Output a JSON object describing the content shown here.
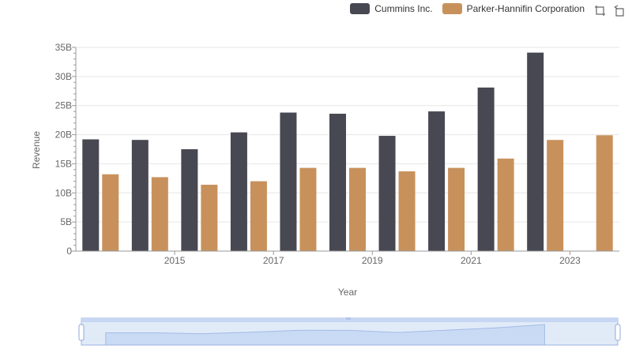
{
  "toolbox": {
    "zoom_icon": "zoom-icon",
    "restore_icon": "restore-icon"
  },
  "chart_data": {
    "type": "bar",
    "title": "",
    "xlabel": "Year",
    "ylabel": "Revenue",
    "x": [
      2014,
      2015,
      2016,
      2017,
      2018,
      2019,
      2020,
      2021,
      2022,
      2023,
      2024
    ],
    "x_tick_labels": [
      "2015",
      "2017",
      "2019",
      "2021",
      "2023"
    ],
    "y_tick_labels": [
      "0",
      "5B",
      "10B",
      "15B",
      "20B",
      "25B",
      "30B",
      "35B"
    ],
    "ylim": [
      0,
      35000000000
    ],
    "grid": true,
    "legend_position": "top-right",
    "series": [
      {
        "name": "Cummins Inc.",
        "color": "#484852",
        "values": [
          19200000000,
          19100000000,
          17500000000,
          20400000000,
          23800000000,
          23600000000,
          19800000000,
          24000000000,
          28100000000,
          34100000000,
          null
        ]
      },
      {
        "name": "Parker-Hannifin Corporation",
        "color": "#c8915c",
        "values": [
          13200000000,
          12700000000,
          11400000000,
          12000000000,
          14300000000,
          14300000000,
          13700000000,
          14300000000,
          15900000000,
          19100000000,
          19900000000
        ]
      }
    ]
  }
}
